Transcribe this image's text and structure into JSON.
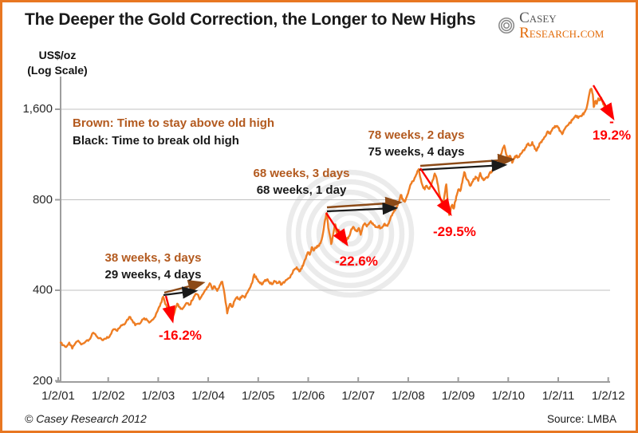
{
  "title": "The Deeper the Gold Correction, the Longer to New Highs",
  "logo": {
    "part1": "Casey",
    "part2": "Research.com"
  },
  "y_axis_unit_line1": "US$/oz",
  "y_axis_unit_line2": "(Log Scale)",
  "legend": {
    "brown_line": "Brown: Time to stay above old high",
    "black_line": "Black: Time to break old high"
  },
  "footer": {
    "left": "© Casey Research 2012",
    "right": "Source: LMBA"
  },
  "colors": {
    "line_orange": "#EE7D23",
    "border_orange": "#E87722",
    "brown_text": "#B35A1F",
    "brown_arrow": "#8C4A17",
    "red": "#FF0000",
    "grid_gray": "#C0C0C0",
    "axis_gray": "#9E9E9E",
    "watermark_gray": "#EBEBEB",
    "logo_gray": "#555555",
    "logo_orange": "#E36C0A"
  },
  "chart_data": {
    "type": "line",
    "title": "The Deeper the Gold Correction, the Longer to New Highs",
    "ylabel": "US$/oz (Log Scale)",
    "xlabel": "",
    "y_scale": "log2",
    "grid": "horizontal",
    "legend_position": "top-left-inside",
    "y_ticks": [
      {
        "label": "1,600",
        "value": 1600,
        "gridline": true
      },
      {
        "label": "800",
        "value": 800,
        "gridline": true
      },
      {
        "label": "400",
        "value": 400,
        "gridline": true
      },
      {
        "label": "200",
        "value": 200,
        "gridline": false
      }
    ],
    "x_ticks": [
      "1/2/01",
      "1/2/02",
      "1/2/03",
      "1/2/04",
      "1/2/05",
      "1/2/06",
      "1/2/07",
      "1/2/08",
      "1/2/09",
      "1/2/10",
      "1/2/11",
      "1/2/12"
    ],
    "x_range_years": [
      2001,
      2012
    ],
    "y_range": [
      200,
      2030
    ],
    "annotations": [
      {
        "above_label": "38 weeks, 3 days",
        "break_label": "29 weeks, 4 days",
        "drop_label": "-16.2%"
      },
      {
        "above_label": "68 weeks, 3 days",
        "break_label": "68 weeks, 1 day",
        "drop_label": "-22.6%"
      },
      {
        "above_label": "78 weeks, 2 days",
        "break_label": "75 weeks, 4 days",
        "drop_label": "-29.5%"
      },
      {
        "drop_label_line1": "-",
        "drop_label_line2": "19.2%"
      }
    ],
    "series": [
      {
        "name": "Gold price (US$/oz, LMBA)",
        "color": "#EE7D23",
        "points": [
          [
            2001.05,
            268
          ],
          [
            2001.1,
            263
          ],
          [
            2001.16,
            259
          ],
          [
            2001.22,
            268
          ],
          [
            2001.28,
            256
          ],
          [
            2001.34,
            266
          ],
          [
            2001.4,
            272
          ],
          [
            2001.46,
            264
          ],
          [
            2001.52,
            267
          ],
          [
            2001.58,
            273
          ],
          [
            2001.64,
            276
          ],
          [
            2001.7,
            289
          ],
          [
            2001.76,
            282
          ],
          [
            2001.82,
            277
          ],
          [
            2001.88,
            273
          ],
          [
            2001.94,
            276
          ],
          [
            2002.0,
            278
          ],
          [
            2002.06,
            287
          ],
          [
            2002.12,
            297
          ],
          [
            2002.18,
            293
          ],
          [
            2002.24,
            302
          ],
          [
            2002.3,
            308
          ],
          [
            2002.36,
            315
          ],
          [
            2002.42,
            326
          ],
          [
            2002.48,
            318
          ],
          [
            2002.54,
            306
          ],
          [
            2002.6,
            310
          ],
          [
            2002.66,
            314
          ],
          [
            2002.72,
            323
          ],
          [
            2002.78,
            318
          ],
          [
            2002.84,
            314
          ],
          [
            2002.9,
            320
          ],
          [
            2002.96,
            335
          ],
          [
            2003.0,
            346
          ],
          [
            2003.05,
            362
          ],
          [
            2003.1,
            381
          ],
          [
            2003.14,
            360
          ],
          [
            2003.19,
            345
          ],
          [
            2003.24,
            330
          ],
          [
            2003.28,
            320
          ],
          [
            2003.33,
            340
          ],
          [
            2003.38,
            361
          ],
          [
            2003.43,
            352
          ],
          [
            2003.48,
            346
          ],
          [
            2003.53,
            355
          ],
          [
            2003.58,
            362
          ],
          [
            2003.63,
            358
          ],
          [
            2003.68,
            370
          ],
          [
            2003.73,
            384
          ],
          [
            2003.78,
            388
          ],
          [
            2003.83,
            373
          ],
          [
            2003.88,
            386
          ],
          [
            2003.93,
            398
          ],
          [
            2003.98,
            410
          ],
          [
            2004.03,
            422
          ],
          [
            2004.08,
            404
          ],
          [
            2004.13,
            412
          ],
          [
            2004.18,
            398
          ],
          [
            2004.23,
            415
          ],
          [
            2004.28,
            427
          ],
          [
            2004.33,
            385
          ],
          [
            2004.38,
            335
          ],
          [
            2004.43,
            360
          ],
          [
            2004.48,
            352
          ],
          [
            2004.53,
            370
          ],
          [
            2004.58,
            380
          ],
          [
            2004.63,
            372
          ],
          [
            2004.68,
            384
          ],
          [
            2004.73,
            378
          ],
          [
            2004.78,
            392
          ],
          [
            2004.83,
            406
          ],
          [
            2004.88,
            424
          ],
          [
            2004.92,
            452
          ],
          [
            2004.97,
            436
          ],
          [
            2005.02,
            426
          ],
          [
            2005.07,
            418
          ],
          [
            2005.12,
            428
          ],
          [
            2005.17,
            434
          ],
          [
            2005.22,
            425
          ],
          [
            2005.27,
            419
          ],
          [
            2005.32,
            430
          ],
          [
            2005.37,
            422
          ],
          [
            2005.42,
            428
          ],
          [
            2005.47,
            418
          ],
          [
            2005.52,
            424
          ],
          [
            2005.57,
            433
          ],
          [
            2005.62,
            440
          ],
          [
            2005.67,
            452
          ],
          [
            2005.72,
            468
          ],
          [
            2005.77,
            477
          ],
          [
            2005.82,
            462
          ],
          [
            2005.87,
            472
          ],
          [
            2005.91,
            493
          ],
          [
            2005.95,
            510
          ],
          [
            2005.99,
            535
          ],
          [
            2006.03,
            525
          ],
          [
            2006.07,
            556
          ],
          [
            2006.11,
            542
          ],
          [
            2006.15,
            554
          ],
          [
            2006.19,
            558
          ],
          [
            2006.23,
            572
          ],
          [
            2006.27,
            590
          ],
          [
            2006.31,
            640
          ],
          [
            2006.34,
            688
          ],
          [
            2006.37,
            722
          ],
          [
            2006.4,
            645
          ],
          [
            2006.43,
            610
          ],
          [
            2006.46,
            570
          ],
          [
            2006.5,
            616
          ],
          [
            2006.54,
            663
          ],
          [
            2006.57,
            620
          ],
          [
            2006.61,
            635
          ],
          [
            2006.65,
            612
          ],
          [
            2006.69,
            580
          ],
          [
            2006.73,
            595
          ],
          [
            2006.77,
            588
          ],
          [
            2006.81,
            604
          ],
          [
            2006.85,
            628
          ],
          [
            2006.89,
            648
          ],
          [
            2006.93,
            638
          ],
          [
            2006.97,
            628
          ],
          [
            2007.01,
            644
          ],
          [
            2007.05,
            612
          ],
          [
            2007.09,
            650
          ],
          [
            2007.13,
            668
          ],
          [
            2007.17,
            652
          ],
          [
            2007.21,
            664
          ],
          [
            2007.25,
            679
          ],
          [
            2007.29,
            668
          ],
          [
            2007.33,
            658
          ],
          [
            2007.37,
            648
          ],
          [
            2007.41,
            655
          ],
          [
            2007.45,
            644
          ],
          [
            2007.49,
            652
          ],
          [
            2007.53,
            666
          ],
          [
            2007.57,
            658
          ],
          [
            2007.61,
            667
          ],
          [
            2007.65,
            700
          ],
          [
            2007.69,
            722
          ],
          [
            2007.73,
            736
          ],
          [
            2007.77,
            760
          ],
          [
            2007.81,
            788
          ],
          [
            2007.85,
            830
          ],
          [
            2007.89,
            806
          ],
          [
            2007.93,
            788
          ],
          [
            2007.97,
            818
          ],
          [
            2008.01,
            858
          ],
          [
            2008.05,
            902
          ],
          [
            2008.09,
            922
          ],
          [
            2008.13,
            948
          ],
          [
            2008.17,
            976
          ],
          [
            2008.21,
            1011
          ],
          [
            2008.25,
            938
          ],
          [
            2008.29,
            888
          ],
          [
            2008.33,
            866
          ],
          [
            2008.37,
            890
          ],
          [
            2008.41,
            870
          ],
          [
            2008.45,
            886
          ],
          [
            2008.49,
            930
          ],
          [
            2008.53,
            978
          ],
          [
            2008.57,
            940
          ],
          [
            2008.61,
            860
          ],
          [
            2008.65,
            800
          ],
          [
            2008.69,
            760
          ],
          [
            2008.73,
            838
          ],
          [
            2008.76,
            900
          ],
          [
            2008.79,
            790
          ],
          [
            2008.82,
            712
          ],
          [
            2008.85,
            745
          ],
          [
            2008.88,
            770
          ],
          [
            2008.91,
            748
          ],
          [
            2008.94,
            790
          ],
          [
            2008.97,
            828
          ],
          [
            2009.0,
            865
          ],
          [
            2009.04,
            855
          ],
          [
            2009.08,
            912
          ],
          [
            2009.12,
            989
          ],
          [
            2009.16,
            942
          ],
          [
            2009.2,
            925
          ],
          [
            2009.24,
            890
          ],
          [
            2009.28,
            918
          ],
          [
            2009.32,
            938
          ],
          [
            2009.36,
            950
          ],
          [
            2009.4,
            925
          ],
          [
            2009.44,
            982
          ],
          [
            2009.48,
            940
          ],
          [
            2009.52,
            932
          ],
          [
            2009.56,
            948
          ],
          [
            2009.6,
            953
          ],
          [
            2009.64,
            990
          ],
          [
            2009.68,
            1000
          ],
          [
            2009.72,
            1012
          ],
          [
            2009.76,
            1048
          ],
          [
            2009.8,
            1060
          ],
          [
            2009.84,
            1105
          ],
          [
            2009.88,
            1168
          ],
          [
            2009.92,
            1212
          ],
          [
            2009.96,
            1130
          ],
          [
            2010.0,
            1098
          ],
          [
            2010.04,
            1120
          ],
          [
            2010.08,
            1062
          ],
          [
            2010.12,
            1098
          ],
          [
            2010.16,
            1122
          ],
          [
            2010.2,
            1110
          ],
          [
            2010.24,
            1136
          ],
          [
            2010.28,
            1152
          ],
          [
            2010.32,
            1168
          ],
          [
            2010.36,
            1200
          ],
          [
            2010.4,
            1232
          ],
          [
            2010.44,
            1212
          ],
          [
            2010.48,
            1244
          ],
          [
            2010.52,
            1205
          ],
          [
            2010.56,
            1164
          ],
          [
            2010.6,
            1192
          ],
          [
            2010.64,
            1236
          ],
          [
            2010.68,
            1262
          ],
          [
            2010.72,
            1290
          ],
          [
            2010.76,
            1316
          ],
          [
            2010.8,
            1348
          ],
          [
            2010.84,
            1326
          ],
          [
            2010.88,
            1372
          ],
          [
            2010.92,
            1388
          ],
          [
            2010.96,
            1406
          ],
          [
            2011.0,
            1388
          ],
          [
            2011.04,
            1356
          ],
          [
            2011.08,
            1322
          ],
          [
            2011.12,
            1368
          ],
          [
            2011.16,
            1402
          ],
          [
            2011.2,
            1418
          ],
          [
            2011.24,
            1440
          ],
          [
            2011.28,
            1472
          ],
          [
            2011.32,
            1506
          ],
          [
            2011.36,
            1522
          ],
          [
            2011.4,
            1496
          ],
          [
            2011.44,
            1516
          ],
          [
            2011.48,
            1530
          ],
          [
            2011.52,
            1562
          ],
          [
            2011.56,
            1600
          ],
          [
            2011.6,
            1718
          ],
          [
            2011.63,
            1826
          ],
          [
            2011.66,
            1872
          ],
          [
            2011.69,
            1792
          ],
          [
            2011.71,
            1628
          ],
          [
            2011.74,
            1702
          ],
          [
            2011.77,
            1668
          ],
          [
            2011.8,
            1740
          ],
          [
            2011.83,
            1712
          ],
          [
            2011.86,
            1748
          ],
          [
            2011.89,
            1688
          ],
          [
            2011.92,
            1640
          ],
          [
            2011.95,
            1580
          ],
          [
            2011.98,
            1620
          ],
          [
            2012.0,
            1598
          ]
        ]
      }
    ]
  }
}
